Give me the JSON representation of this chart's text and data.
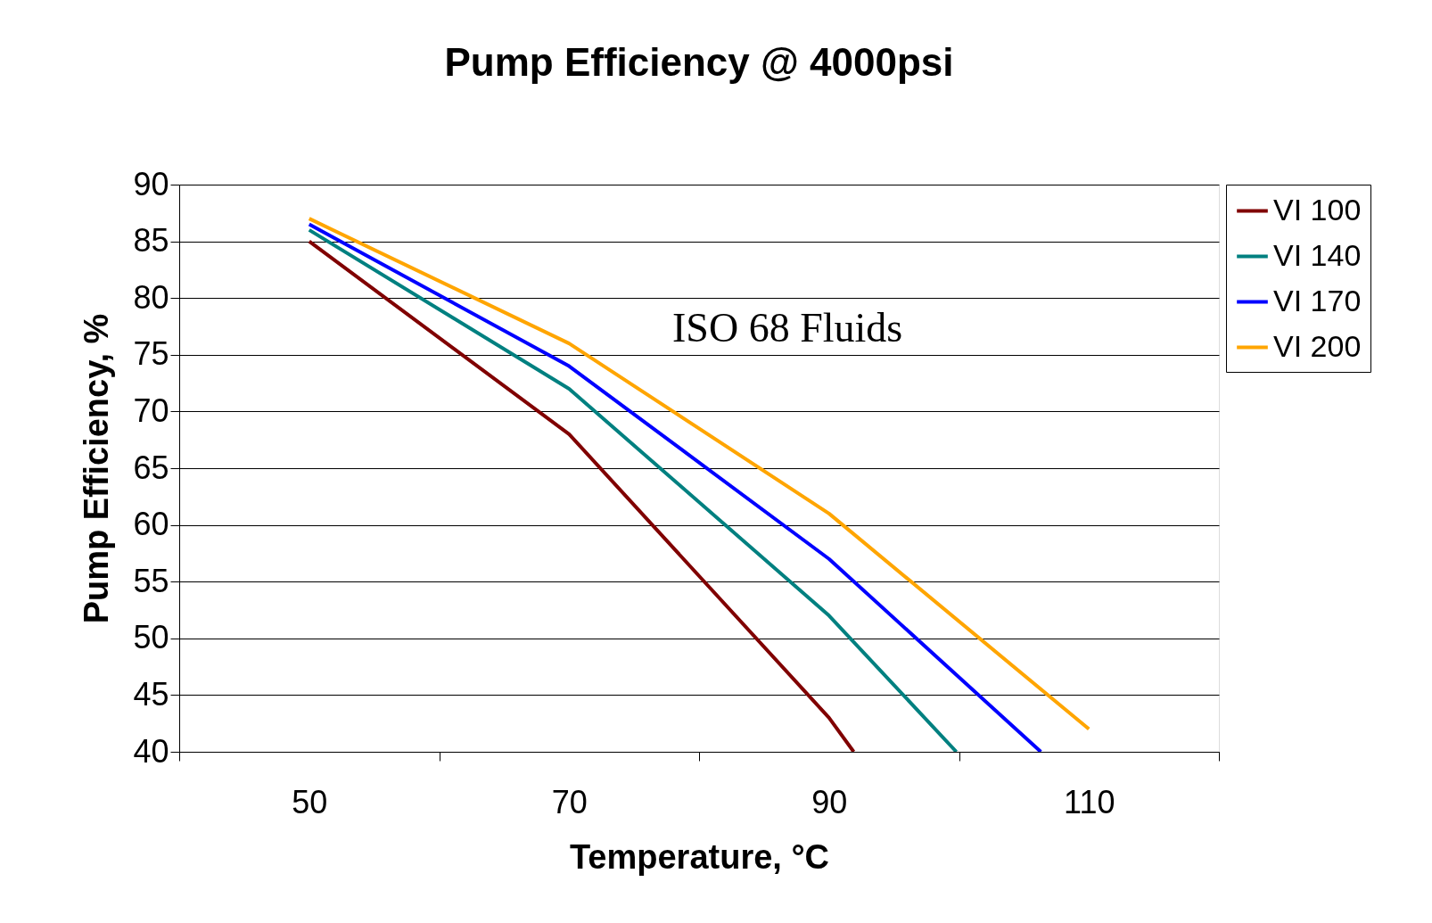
{
  "chart_data": {
    "type": "line",
    "title": "Pump Efficiency @ 4000psi",
    "xlabel": "Temperature, °C",
    "ylabel": "Pump Efficiency, %",
    "xlim": [
      40,
      120
    ],
    "xticks": [
      {
        "value": 40,
        "label": null
      },
      50,
      {
        "value": 60,
        "label": null
      },
      70,
      {
        "value": 80,
        "label": null
      },
      90,
      {
        "value": 100,
        "label": null
      },
      110,
      {
        "value": 120,
        "label": null
      }
    ],
    "ylim": [
      40,
      90
    ],
    "yticks": [
      40,
      45,
      50,
      55,
      60,
      65,
      70,
      75,
      80,
      85,
      90
    ],
    "grid": "y",
    "legend": "right",
    "marker": "none",
    "line_style": "solid",
    "annotations": [
      "ISO 68 Fluids"
    ],
    "series": [
      {
        "name": "VI 100",
        "color": "#800000",
        "x": [
          50,
          70,
          90,
          91.9
        ],
        "values": [
          85,
          68,
          43,
          40
        ]
      },
      {
        "name": "VI 140",
        "color": "#008080",
        "x": [
          50,
          70,
          90,
          99.8
        ],
        "values": [
          86,
          72,
          52,
          40
        ]
      },
      {
        "name": "VI 170",
        "color": "#0000ff",
        "x": [
          50,
          70,
          90,
          106.3
        ],
        "values": [
          86.5,
          74,
          57,
          40
        ]
      },
      {
        "name": "VI 200",
        "color": "#ffa500",
        "x": [
          50,
          70,
          90,
          110
        ],
        "values": [
          87,
          76,
          61,
          42
        ]
      }
    ]
  }
}
